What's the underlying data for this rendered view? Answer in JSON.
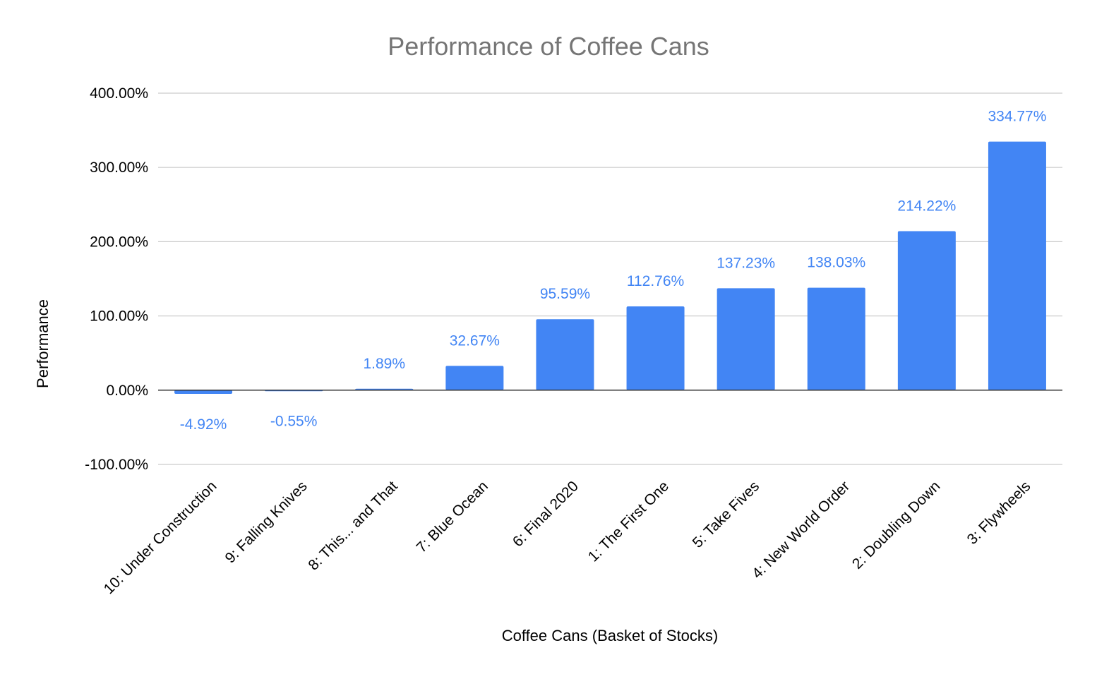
{
  "chart_data": {
    "type": "bar",
    "title": "Performance of Coffee Cans",
    "xlabel": "Coffee Cans (Basket of Stocks)",
    "ylabel": "Performance",
    "ylim": [
      -100,
      400
    ],
    "yticks": [
      -100,
      0,
      100,
      200,
      300,
      400
    ],
    "ytick_labels": [
      "-100.00%",
      "0.00%",
      "100.00%",
      "200.00%",
      "300.00%",
      "400.00%"
    ],
    "grid": true,
    "legend": "none",
    "categories": [
      "10: Under Construction",
      "9: Falling Knives",
      "8: This... and That",
      "7: Blue Ocean",
      "6: Final 2020",
      "1: The First One",
      "5: Take Fives",
      "4: New World Order",
      "2: Doubling Down",
      "3: Flywheels"
    ],
    "values": [
      -4.92,
      -0.55,
      1.89,
      32.67,
      95.59,
      112.76,
      137.23,
      138.03,
      214.22,
      334.77
    ],
    "data_labels": [
      "-4.92%",
      "-0.55%",
      "1.89%",
      "32.67%",
      "95.59%",
      "112.76%",
      "137.23%",
      "138.03%",
      "214.22%",
      "334.77%"
    ],
    "colors": {
      "bar": "#4285f4",
      "data_label": "#4285f4",
      "title": "#757575",
      "grid": "#cccccc",
      "zero_line": "#333333"
    }
  }
}
